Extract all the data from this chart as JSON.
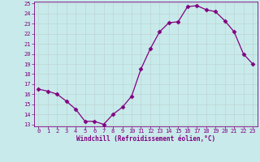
{
  "x": [
    0,
    1,
    2,
    3,
    4,
    5,
    6,
    7,
    8,
    9,
    10,
    11,
    12,
    13,
    14,
    15,
    16,
    17,
    18,
    19,
    20,
    21,
    22,
    23
  ],
  "y": [
    16.5,
    16.3,
    16.0,
    15.3,
    14.5,
    13.3,
    13.3,
    13.0,
    14.0,
    14.7,
    15.8,
    18.5,
    20.5,
    22.2,
    23.1,
    23.2,
    24.7,
    24.8,
    24.4,
    24.2,
    23.3,
    22.2,
    20.0,
    19.0
  ],
  "line_color": "#800080",
  "marker": "D",
  "marker_size": 2.5,
  "bg_color": "#c8eaea",
  "grid_color": "#b8c8c8",
  "xlabel": "Windchill (Refroidissement éolien,°C)",
  "xlabel_color": "#800080",
  "tick_color": "#800080",
  "ylim": [
    13,
    25
  ],
  "yticks": [
    13,
    14,
    15,
    16,
    17,
    18,
    19,
    20,
    21,
    22,
    23,
    24,
    25
  ],
  "xticks": [
    0,
    1,
    2,
    3,
    4,
    5,
    6,
    7,
    8,
    9,
    10,
    11,
    12,
    13,
    14,
    15,
    16,
    17,
    18,
    19,
    20,
    21,
    22,
    23
  ]
}
